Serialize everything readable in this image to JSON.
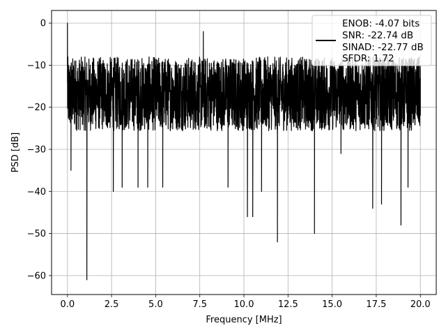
{
  "chart_data": {
    "type": "line",
    "title": "",
    "xlabel": "Frequency [MHz]",
    "ylabel": "PSD [dB]",
    "xlim": [
      -0.9,
      20.9
    ],
    "ylim": [
      -64.5,
      3.0
    ],
    "xticks": [
      0.0,
      2.5,
      5.0,
      7.5,
      10.0,
      12.5,
      15.0,
      17.5,
      20.0
    ],
    "xtick_labels": [
      "0.0",
      "2.5",
      "5.0",
      "7.5",
      "10.0",
      "12.5",
      "15.0",
      "17.5",
      "20.0"
    ],
    "yticks": [
      0,
      -10,
      -20,
      -30,
      -40,
      -50,
      -60
    ],
    "ytick_labels": [
      "0",
      "−10",
      "−20",
      "−30",
      "−40",
      "−50",
      "−60"
    ],
    "grid": true,
    "legend_position": "top-right",
    "legend_lines": [
      "ENOB: -4.07 bits",
      "SNR: -22.74 dB",
      "SINAD: -22.77 dB",
      "SFDR: 1.72"
    ],
    "series": [
      {
        "color": "#000000",
        "noise_floor_db": [
          -30,
          -8
        ],
        "x": [
          0.0,
          0.02,
          0.05,
          0.08,
          0.1,
          0.2,
          0.4,
          1.1,
          2.6,
          3.1,
          4.0,
          4.55,
          5.4,
          7.7,
          9.1,
          10.2,
          10.5,
          11.0,
          11.9,
          14.0,
          15.5,
          17.3,
          17.8,
          18.9,
          19.3,
          20.0
        ],
        "y": [
          0,
          -8,
          -10,
          -14,
          -23,
          -35,
          -9,
          -61,
          -40,
          -39,
          -39,
          -39,
          -39,
          -2,
          -39,
          -46,
          -46,
          -40,
          -52,
          -50,
          -31,
          -44,
          -43,
          -48,
          -39,
          -22
        ]
      }
    ]
  }
}
